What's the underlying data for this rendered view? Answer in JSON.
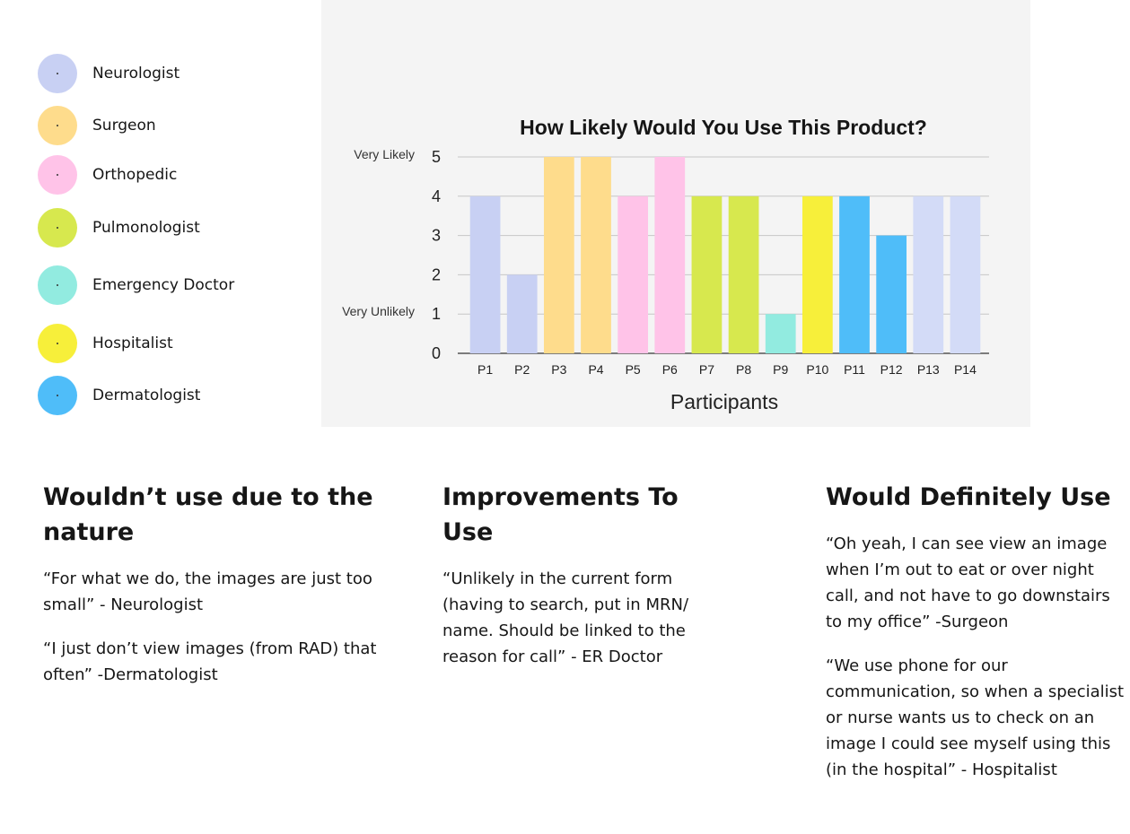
{
  "legend": [
    {
      "label": "Neurologist",
      "color": "#c8d0f3"
    },
    {
      "label": "Surgeon",
      "color": "#fedc8c"
    },
    {
      "label": "Orthopedic",
      "color": "#ffc3e8"
    },
    {
      "label": "Pulmonologist",
      "color": "#d7e84e"
    },
    {
      "label": "Emergency Doctor",
      "color": "#92ebe0"
    },
    {
      "label": "Hospitalist",
      "color": "#f7ef3a"
    },
    {
      "label": "Dermatologist",
      "color": "#4fbdf9"
    }
  ],
  "chart_data": {
    "type": "bar",
    "title": "How Likely Would You Use This Product?",
    "xlabel": "Participants",
    "ylabel": "",
    "ylim": [
      0,
      5
    ],
    "yticks": [
      0,
      1,
      2,
      3,
      4,
      5
    ],
    "y_annotations": [
      {
        "value": 5,
        "label": "Very Likely"
      },
      {
        "value": 1,
        "label": "Very Unlikely"
      }
    ],
    "grid": true,
    "categories": [
      "P1",
      "P2",
      "P3",
      "P4",
      "P5",
      "P6",
      "P7",
      "P8",
      "P9",
      "P10",
      "P11",
      "P12",
      "P13",
      "P14"
    ],
    "values": [
      4,
      2,
      5,
      5,
      4,
      5,
      4,
      4,
      1,
      4,
      4,
      3,
      4,
      4
    ],
    "bar_colors": [
      "#c8d0f3",
      "#c8d0f3",
      "#fedc8c",
      "#fedc8c",
      "#ffc3e8",
      "#ffc3e8",
      "#d7e84e",
      "#d7e84e",
      "#92ebe0",
      "#f7ef3a",
      "#4fbdf9",
      "#4fbdf9",
      "#d3dbf7",
      "#d3dbf7"
    ]
  },
  "sections": [
    {
      "heading": "Wouldn’t use due to the nature",
      "quotes": [
        "“For what we do, the images are just too small” - Neurologist",
        "“I just don’t view images (from RAD) that often” -Dermatologist"
      ]
    },
    {
      "heading": "Improvements To Use",
      "quotes": [
        "“Unlikely in the current form (having to search, put in MRN/ name. Should be linked to the reason for call” - ER Doctor"
      ]
    },
    {
      "heading": "Would Definitely Use",
      "quotes": [
        "“Oh yeah, I can see view an image when I’m out to eat or over night call, and not have to go downstairs to my office” -Surgeon",
        "“We use phone for our communication, so when a specialist or nurse wants us to check on an image I could see myself using this (in the hospital” - Hospitalist"
      ]
    }
  ]
}
